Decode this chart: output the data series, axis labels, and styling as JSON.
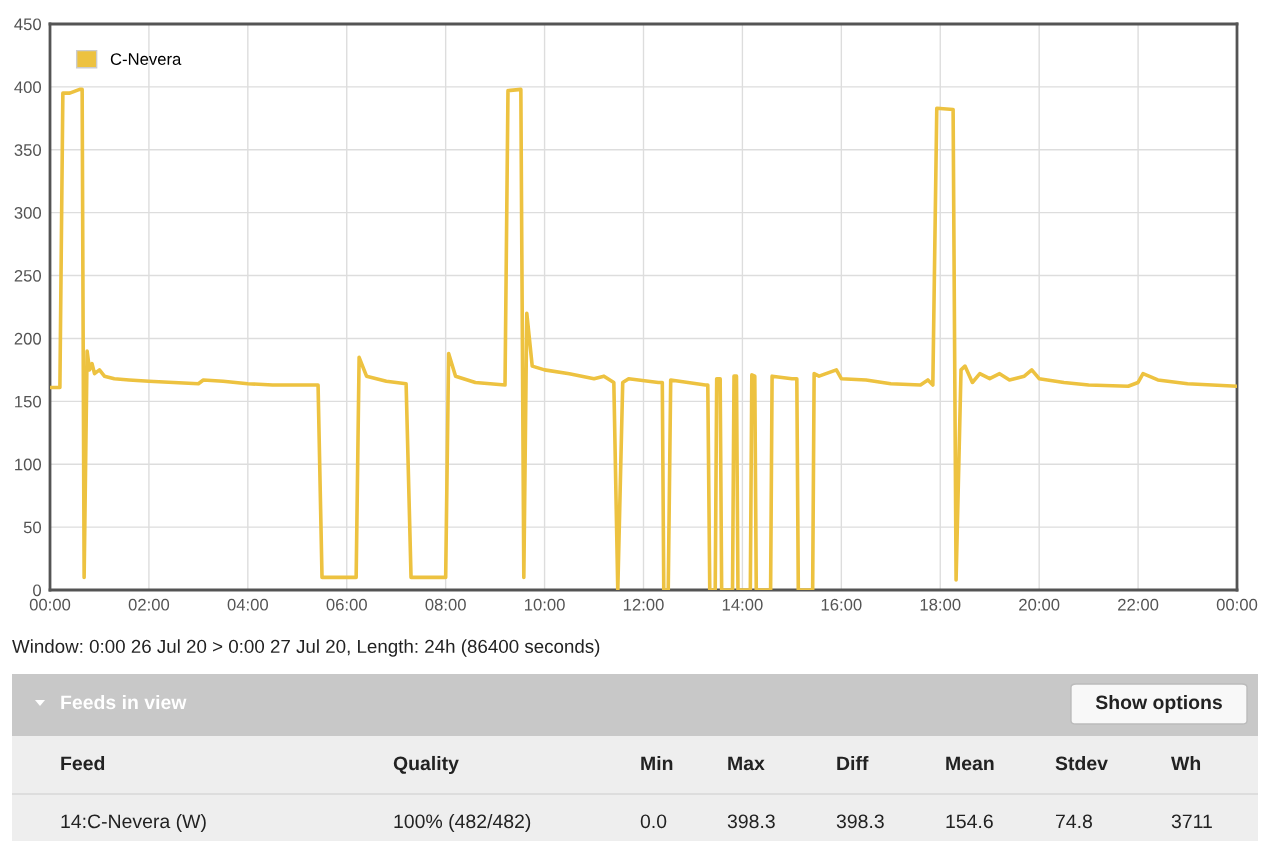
{
  "chart_data": {
    "type": "line",
    "x": [
      0,
      0.2,
      0.26,
      0.4,
      0.6,
      0.65,
      0.69,
      0.75,
      0.8,
      0.85,
      0.9,
      1.0,
      1.1,
      1.3,
      1.6,
      2.0,
      2.5,
      3.0,
      3.1,
      3.5,
      4.0,
      4.5,
      5.0,
      5.42,
      5.5,
      6.19,
      6.25,
      6.4,
      6.8,
      7.0,
      7.2,
      7.3,
      8.0,
      8.06,
      8.2,
      8.6,
      9.2,
      9.26,
      9.52,
      9.58,
      9.64,
      9.75,
      10.0,
      10.5,
      11.0,
      11.2,
      11.4,
      11.48,
      11.58,
      11.7,
      12.3,
      12.38,
      12.41,
      12.5,
      12.55,
      13.25,
      13.3,
      13.34,
      13.45,
      13.48,
      13.55,
      13.58,
      13.8,
      13.83,
      13.88,
      13.91,
      14.16,
      14.19,
      14.25,
      14.28,
      14.57,
      14.6,
      15.0,
      15.1,
      15.13,
      15.42,
      15.45,
      15.55,
      15.9,
      16.0,
      16.5,
      17.0,
      17.6,
      17.75,
      17.85,
      17.93,
      18.26,
      18.32,
      18.42,
      18.5,
      18.65,
      18.8,
      19.0,
      19.2,
      19.4,
      19.7,
      19.85,
      20.0,
      20.5,
      21.0,
      21.8,
      22.0,
      22.1,
      22.4,
      23.0,
      24.0
    ],
    "series": [
      {
        "name": "C-Nevera",
        "color": "#edc240",
        "values": [
          161,
          161,
          395,
          395,
          398,
          398,
          10,
          190,
          175,
          180,
          172,
          175,
          170,
          168,
          167,
          166,
          165,
          164,
          167,
          166,
          164,
          163,
          163,
          163,
          10,
          10,
          185,
          170,
          166,
          165,
          164,
          10,
          10,
          188,
          170,
          165,
          163,
          397,
          398,
          10,
          220,
          178,
          175,
          172,
          168,
          170,
          165,
          0,
          165,
          168,
          165,
          165,
          0,
          0,
          167,
          163,
          163,
          0,
          0,
          168,
          168,
          0,
          0,
          170,
          170,
          0,
          0,
          171,
          170,
          0,
          0,
          170,
          168,
          168,
          0,
          0,
          172,
          170,
          175,
          168,
          167,
          164,
          163,
          167,
          163,
          383,
          382,
          8,
          175,
          178,
          165,
          172,
          168,
          172,
          167,
          170,
          175,
          168,
          165,
          163,
          162,
          165,
          172,
          167,
          164,
          162
        ]
      }
    ],
    "xlim": [
      0,
      24
    ],
    "xticks": [
      {
        "value": 0,
        "label": "00:00"
      },
      {
        "value": 2,
        "label": "02:00"
      },
      {
        "value": 4,
        "label": "04:00"
      },
      {
        "value": 6,
        "label": "06:00"
      },
      {
        "value": 8,
        "label": "08:00"
      },
      {
        "value": 10,
        "label": "10:00"
      },
      {
        "value": 12,
        "label": "12:00"
      },
      {
        "value": 14,
        "label": "14:00"
      },
      {
        "value": 16,
        "label": "16:00"
      },
      {
        "value": 18,
        "label": "18:00"
      },
      {
        "value": 20,
        "label": "20:00"
      },
      {
        "value": 22,
        "label": "22:00"
      },
      {
        "value": 24,
        "label": "00:00"
      }
    ],
    "ylim": [
      0,
      450
    ],
    "yticks": [
      0,
      50,
      100,
      150,
      200,
      250,
      300,
      350,
      400,
      450
    ],
    "grid": true,
    "legend": "top left",
    "annotations": [
      "Window: 0:00 26 Jul 20 > 0:00 27 Jul 20, Length: 24h (86400 seconds)",
      "Feeds in view",
      "Show options",
      "Feed",
      "Quality",
      "Min",
      "Max",
      "Diff",
      "Mean",
      "Stdev",
      "Wh",
      "14:C-Nevera (W)",
      "100% (482/482)",
      "0.0",
      "398.3",
      "398.3",
      "154.6",
      "74.8",
      "3711"
    ]
  }
}
